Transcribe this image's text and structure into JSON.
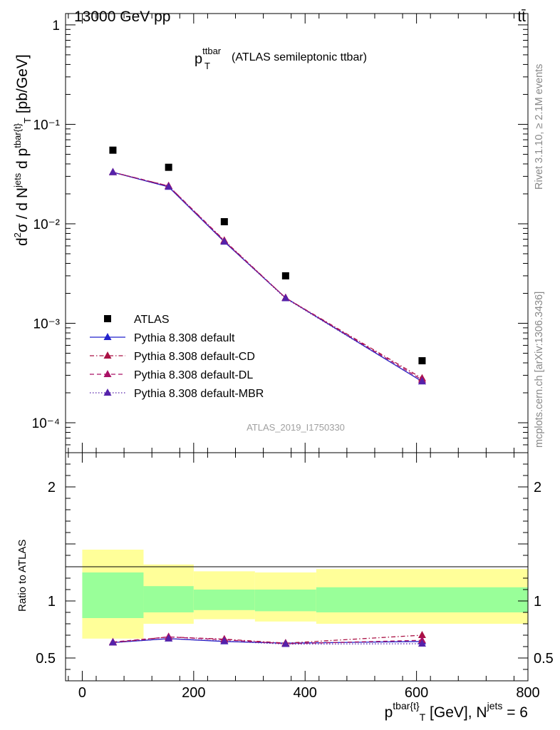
{
  "header": {
    "left": "13000 GeV pp",
    "right": "tt̄"
  },
  "side": {
    "rivet": "Rivet 3.1.10, ≥ 2.1M events",
    "mcplots": "mcplots.cern.ch [arXiv:1306.3436]"
  },
  "colors": {
    "atlas": "#000000",
    "default": "#2222cc",
    "cd": "#aa1144",
    "dl": "#aa1166",
    "mbr": "#5522aa",
    "band_inner": "#99ff99",
    "band_outer": "#ffff99"
  },
  "chart_data": [
    {
      "type": "line",
      "title": "(ATLAS semileptonic ttbar)",
      "title_symbol": "p",
      "title_sup": "ttbar",
      "title_sub": "T",
      "watermark": "ATLAS_2019_I1750330",
      "ylabel": "d²σ / d N^jets d p^tbar{t}_T [pb/GeV]",
      "yscale": "log",
      "ylim": [
        5e-05,
        1.3
      ],
      "xlim": [
        -30,
        800
      ],
      "yticks": [
        "10⁻⁴",
        "10⁻³",
        "10⁻²",
        "10⁻¹",
        "1"
      ],
      "legend_position": "bottom-left",
      "x": [
        55,
        155,
        255,
        365,
        610
      ],
      "series": [
        {
          "name": "ATLAS",
          "marker": "square",
          "values": [
            0.055,
            0.037,
            0.0105,
            0.003,
            0.00042
          ]
        },
        {
          "name": "Pythia 8.308 default",
          "style": "solid",
          "values": [
            0.033,
            0.0235,
            0.0066,
            0.0018,
            0.00026
          ]
        },
        {
          "name": "Pythia 8.308 default-CD",
          "style": "dashdot",
          "values": [
            0.033,
            0.024,
            0.0068,
            0.0018,
            0.00028
          ]
        },
        {
          "name": "Pythia 8.308 default-DL",
          "style": "dashed",
          "values": [
            0.033,
            0.024,
            0.0067,
            0.0018,
            0.00027
          ]
        },
        {
          "name": "Pythia 8.308 default-MBR",
          "style": "dotted",
          "values": [
            0.033,
            0.0235,
            0.0066,
            0.00178,
            0.00026
          ]
        }
      ]
    },
    {
      "type": "line",
      "ylabel": "Ratio to ATLAS",
      "xlabel": "p^tbar{t}_T [GeV], N^jets = 6",
      "xlim": [
        -30,
        800
      ],
      "ylim": [
        0.3,
        2.3
      ],
      "xticks": [
        0,
        200,
        400,
        600,
        800
      ],
      "yticks": [
        0.5,
        1,
        2
      ],
      "bins": [
        {
          "x0": 0,
          "x1": 110,
          "inner": [
            0.85,
            1.25
          ],
          "outer": [
            0.67,
            1.45
          ]
        },
        {
          "x0": 110,
          "x1": 200,
          "inner": [
            0.9,
            1.13
          ],
          "outer": [
            0.8,
            1.32
          ]
        },
        {
          "x0": 200,
          "x1": 310,
          "inner": [
            0.92,
            1.1
          ],
          "outer": [
            0.84,
            1.26
          ]
        },
        {
          "x0": 310,
          "x1": 420,
          "inner": [
            0.91,
            1.1
          ],
          "outer": [
            0.82,
            1.25
          ]
        },
        {
          "x0": 420,
          "x1": 800,
          "inner": [
            0.9,
            1.12
          ],
          "outer": [
            0.8,
            1.28
          ]
        }
      ],
      "x": [
        55,
        155,
        255,
        365,
        610
      ],
      "series": [
        {
          "name": "Pythia 8.308 default",
          "style": "solid",
          "values": [
            0.635,
            0.67,
            0.645,
            0.63,
            0.645
          ]
        },
        {
          "name": "Pythia 8.308 default-CD",
          "style": "dashdot",
          "values": [
            0.635,
            0.685,
            0.665,
            0.63,
            0.7
          ]
        },
        {
          "name": "Pythia 8.308 default-DL",
          "style": "dashed",
          "values": [
            0.64,
            0.685,
            0.66,
            0.625,
            0.655
          ]
        },
        {
          "name": "Pythia 8.308 default-MBR",
          "style": "dotted",
          "values": [
            0.635,
            0.67,
            0.648,
            0.622,
            0.625
          ]
        }
      ]
    }
  ]
}
